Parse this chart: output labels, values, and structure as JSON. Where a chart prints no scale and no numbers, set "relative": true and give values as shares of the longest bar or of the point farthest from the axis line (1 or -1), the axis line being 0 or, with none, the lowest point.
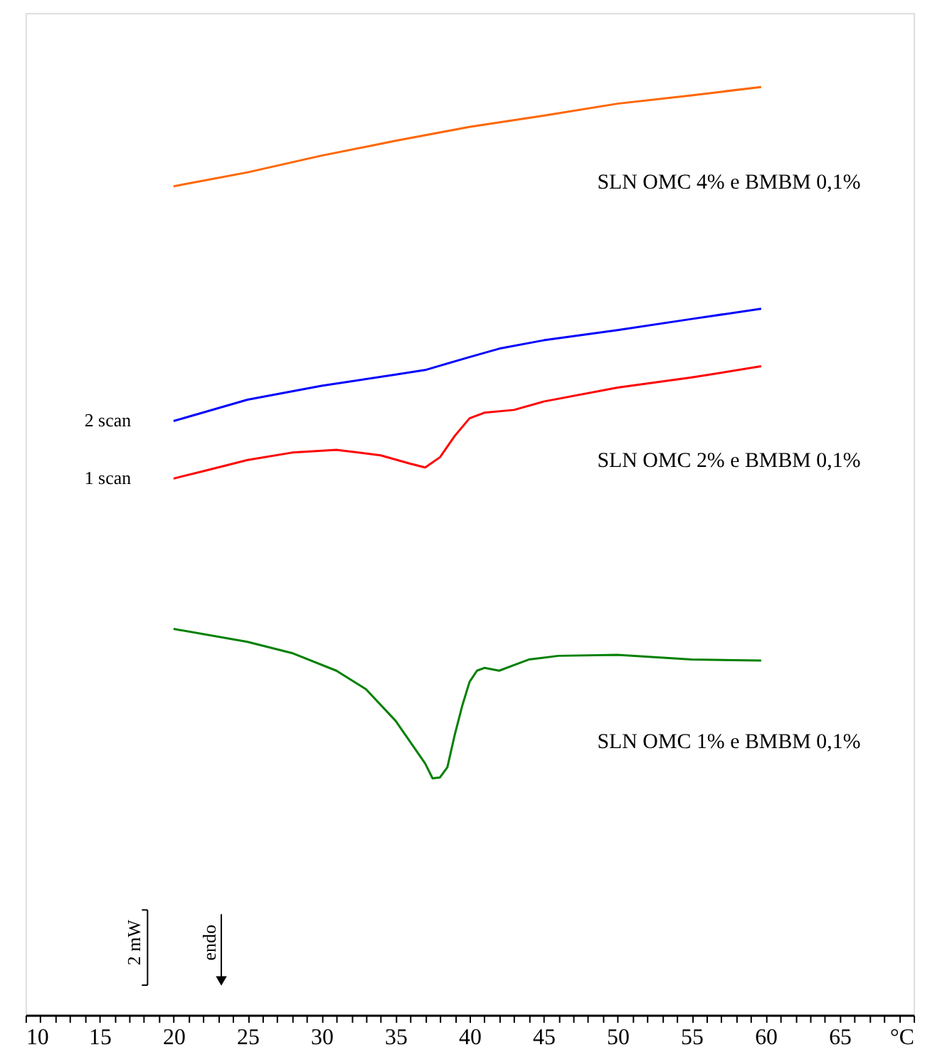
{
  "chart_data": {
    "type": "line",
    "relative": true,
    "tick_labels": "x",
    "grid": false,
    "marker": "none",
    "line_style": "solid",
    "xlim": [
      10,
      70
    ],
    "xticks": [
      10,
      {
        "value": 11,
        "label": null
      },
      {
        "value": 12,
        "label": null
      },
      {
        "value": 13,
        "label": null
      },
      {
        "value": 14,
        "label": null
      },
      15,
      {
        "value": 16,
        "label": null
      },
      {
        "value": 17,
        "label": null
      },
      {
        "value": 18,
        "label": null
      },
      {
        "value": 19,
        "label": null
      },
      20,
      {
        "value": 21,
        "label": null
      },
      {
        "value": 22,
        "label": null
      },
      {
        "value": 23,
        "label": null
      },
      {
        "value": 24,
        "label": null
      },
      25,
      {
        "value": 26,
        "label": null
      },
      {
        "value": 27,
        "label": null
      },
      {
        "value": 28,
        "label": null
      },
      {
        "value": 29,
        "label": null
      },
      30,
      {
        "value": 31,
        "label": null
      },
      {
        "value": 32,
        "label": null
      },
      {
        "value": 33,
        "label": null
      },
      {
        "value": 34,
        "label": null
      },
      35,
      {
        "value": 36,
        "label": null
      },
      {
        "value": 37,
        "label": null
      },
      {
        "value": 38,
        "label": null
      },
      {
        "value": 39,
        "label": null
      },
      40,
      {
        "value": 41,
        "label": null
      },
      {
        "value": 42,
        "label": null
      },
      {
        "value": 43,
        "label": null
      },
      {
        "value": 44,
        "label": null
      },
      45,
      {
        "value": 46,
        "label": null
      },
      {
        "value": 47,
        "label": null
      },
      {
        "value": 48,
        "label": null
      },
      {
        "value": 49,
        "label": null
      },
      50,
      {
        "value": 51,
        "label": null
      },
      {
        "value": 52,
        "label": null
      },
      {
        "value": 53,
        "label": null
      },
      {
        "value": 54,
        "label": null
      },
      55,
      {
        "value": 56,
        "label": null
      },
      {
        "value": 57,
        "label": null
      },
      {
        "value": 58,
        "label": null
      },
      {
        "value": 59,
        "label": null
      },
      60,
      {
        "value": 61,
        "label": null
      },
      {
        "value": 62,
        "label": null
      },
      {
        "value": 63,
        "label": null
      },
      {
        "value": 64,
        "label": null
      },
      65,
      {
        "value": 66,
        "label": null
      },
      {
        "value": 67,
        "label": null
      },
      {
        "value": 68,
        "label": null
      },
      {
        "value": 69,
        "label": null
      },
      {
        "value": 70,
        "label": "°C"
      }
    ],
    "series": [
      {
        "color": "#ff6600",
        "x": [
          20,
          25,
          30,
          35,
          40,
          45,
          50,
          55,
          59.7
        ],
        "values": [
          0.893,
          0.908,
          0.926,
          0.942,
          0.957,
          0.969,
          0.982,
          0.991,
          1.0
        ]
      },
      {
        "name": "2 scan",
        "color": "#0000ff",
        "x": [
          20,
          25,
          30,
          35,
          37,
          40,
          42,
          45,
          50,
          55,
          59.7
        ],
        "values": [
          0.64,
          0.663,
          0.678,
          0.69,
          0.695,
          0.709,
          0.718,
          0.727,
          0.738,
          0.75,
          0.761
        ]
      },
      {
        "name": "1 scan",
        "color": "#ff0000",
        "x": [
          20,
          22,
          25,
          28,
          31,
          34,
          36,
          37,
          38,
          39,
          40,
          41,
          43,
          45,
          50,
          55,
          59.7
        ],
        "values": [
          0.578,
          0.586,
          0.598,
          0.606,
          0.609,
          0.603,
          0.594,
          0.59,
          0.601,
          0.624,
          0.643,
          0.649,
          0.652,
          0.661,
          0.676,
          0.687,
          0.699
        ]
      },
      {
        "color": "#008000",
        "x": [
          20,
          25,
          28,
          31,
          33,
          35,
          36,
          37,
          37.5,
          38,
          38.5,
          39,
          39.5,
          40,
          40.5,
          41,
          42,
          43,
          44,
          46,
          50,
          55,
          59.7
        ],
        "values": [
          0.416,
          0.402,
          0.39,
          0.371,
          0.351,
          0.317,
          0.294,
          0.271,
          0.255,
          0.256,
          0.267,
          0.302,
          0.333,
          0.359,
          0.371,
          0.374,
          0.371,
          0.377,
          0.383,
          0.387,
          0.388,
          0.383,
          0.382
        ]
      }
    ],
    "annotations": [
      "SLN OMC 4% e BMBM 0,1%",
      "SLN OMC 2% e BMBM 0,1%",
      "SLN OMC 1% e BMBM 0,1%",
      "2 mW",
      "endo"
    ]
  }
}
